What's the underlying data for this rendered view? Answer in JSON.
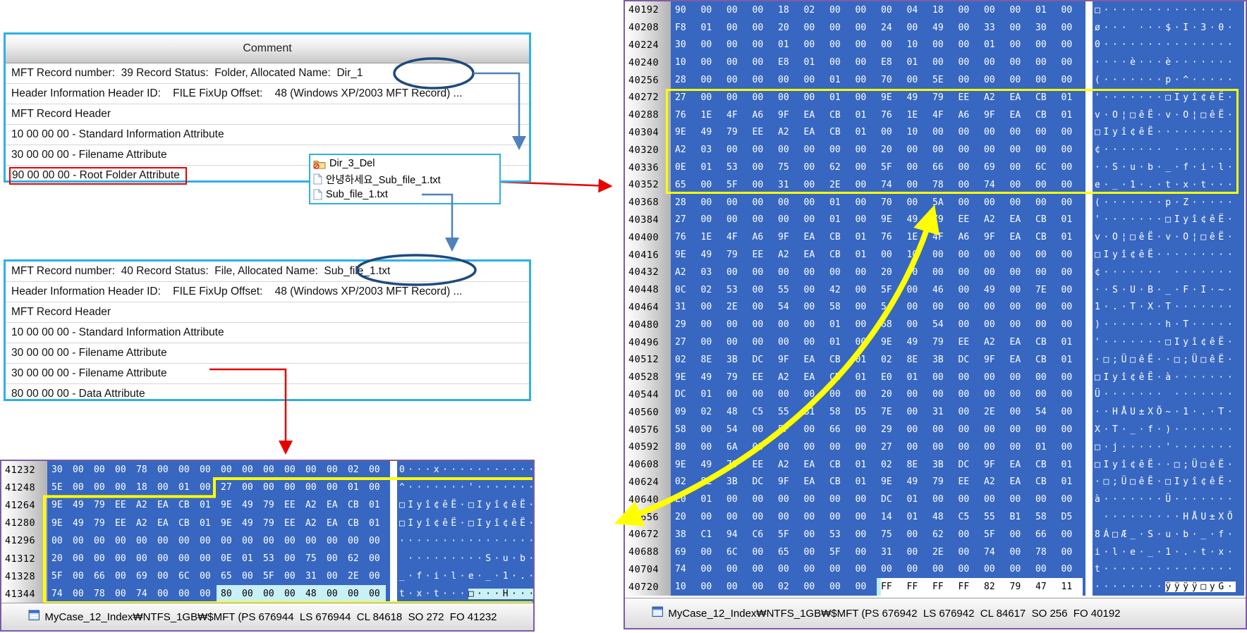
{
  "panel1": {
    "header": "Comment",
    "rows": [
      {
        "label": "MFT Record number:  39 Record Status:  Folder, Allocated Name:  Dir_1"
      },
      {
        "label": "Header Information Header ID:    FILE FixUp Offset:    48 (Windows XP/2003 MFT Record) ..."
      },
      {
        "label": "MFT Record Header"
      },
      {
        "label": "10 00 00 00 - Standard Information Attribute"
      },
      {
        "label": "30 00 00 00 - Filename Attribute"
      },
      {
        "label": "90 00 00 00 - Root Folder Attribute",
        "redbox": true
      }
    ]
  },
  "popup": {
    "items": [
      {
        "icon": "deleted-folder-icon",
        "label": "Dir_3_Del"
      },
      {
        "icon": "file-icon",
        "label": "안녕하세요_Sub_file_1.txt"
      },
      {
        "icon": "file-icon",
        "label": "Sub_file_1.txt"
      }
    ]
  },
  "panel2": {
    "rows": [
      {
        "label": "MFT Record number:  40 Record Status:  File, Allocated Name:  Sub_file_1.txt"
      },
      {
        "label": "Header Information Header ID:    FILE FixUp Offset:    48 (Windows XP/2003 MFT Record) ..."
      },
      {
        "label": "MFT Record Header"
      },
      {
        "label": "10 00 00 00 - Standard Information Attribute"
      },
      {
        "label": "30 00 00 00 - Filename Attribute"
      },
      {
        "label": "30 00 00 00 - Filename Attribute"
      },
      {
        "label": "80 00 00 00 - Data Attribute"
      }
    ]
  },
  "hex_left": {
    "status": "MyCase_12_Index₩NTFS_1GB₩$MFT (PS 676944  LS 676944  CL 84618  SO 272  FO 41232",
    "sel_style": "selc",
    "rows": [
      {
        "o": "41232",
        "b": "30 00 00 00 78 00 00 00 00 00 00 00 00 00 02 00",
        "a": "0···x···········"
      },
      {
        "o": "41248",
        "b": "5E 00 00 00 18 00 01 00 27 00 00 00 00 00 01 00",
        "a": "^·······'·······"
      },
      {
        "o": "41264",
        "b": "9E 49 79 EE A2 EA CB 01 9E 49 79 EE A2 EA CB 01",
        "a": "□Iyî¢êË·□Iyî¢êË·"
      },
      {
        "o": "41280",
        "b": "9E 49 79 EE A2 EA CB 01 9E 49 79 EE A2 EA CB 01",
        "a": "□Iyî¢êË·□Iyî¢êË·"
      },
      {
        "o": "41296",
        "b": "00 00 00 00 00 00 00 00 00 00 00 00 00 00 00 00",
        "a": "················"
      },
      {
        "o": "41312",
        "b": "20 00 00 00 00 00 00 00 0E 01 53 00 75 00 62 00",
        "a": " ·········S·u·b·"
      },
      {
        "o": "41328",
        "b": "5F 00 66 00 69 00 6C 00 65 00 5F 00 31 00 2E 00",
        "a": "_·f·i·l·e·_·1·.·"
      },
      {
        "o": "41344",
        "b": "74 00 78 00 74 00 00 00 80 00 00 00 48 00 00 00",
        "a": "t·x·t···□···H···",
        "sel": 8
      }
    ]
  },
  "hex_right": {
    "status": "MyCase_12_Index₩NTFS_1GB₩$MFT (PS 676942  LS 676942  CL 84617  SO 256  FO 40192",
    "sel_style": "selw",
    "rows": [
      {
        "o": "40192",
        "b": "90 00 00 00 18 02 00 00 00 04 18 00 00 00 01 00",
        "a": "□···············"
      },
      {
        "o": "40208",
        "b": "F8 01 00 00 20 00 00 00 24 00 49 00 33 00 30 00",
        "a": "ø··· ···$·I·3·0·"
      },
      {
        "o": "40224",
        "b": "30 00 00 00 01 00 00 00 00 10 00 00 01 00 00 00",
        "a": "0···············"
      },
      {
        "o": "40240",
        "b": "10 00 00 00 E8 01 00 00 E8 01 00 00 00 00 00 00",
        "a": "····è···è·······"
      },
      {
        "o": "40256",
        "b": "28 00 00 00 00 00 01 00 70 00 5E 00 00 00 00 00",
        "a": "(·······p·^·····"
      },
      {
        "o": "40272",
        "b": "27 00 00 00 00 00 01 00 9E 49 79 EE A2 EA CB 01",
        "a": "'·······□Iyî¢êË·"
      },
      {
        "o": "40288",
        "b": "76 1E 4F A6 9F EA CB 01 76 1E 4F A6 9F EA CB 01",
        "a": "v·O¦□êË·v·O¦□êË·"
      },
      {
        "o": "40304",
        "b": "9E 49 79 EE A2 EA CB 01 00 10 00 00 00 00 00 00",
        "a": "□Iyî¢êË·········"
      },
      {
        "o": "40320",
        "b": "A2 03 00 00 00 00 00 00 20 00 00 00 00 00 00 00",
        "a": "¢······· ·······"
      },
      {
        "o": "40336",
        "b": "0E 01 53 00 75 00 62 00 5F 00 66 00 69 00 6C 00",
        "a": "··S·u·b·_·f·i·l·"
      },
      {
        "o": "40352",
        "b": "65 00 5F 00 31 00 2E 00 74 00 78 00 74 00 00 00",
        "a": "e·_·1·.·t·x·t···"
      },
      {
        "o": "40368",
        "b": "28 00 00 00 00 00 01 00 70 00 5A 00 00 00 00 00",
        "a": "(·······p·Z·····"
      },
      {
        "o": "40384",
        "b": "27 00 00 00 00 00 01 00 9E 49 79 EE A2 EA CB 01",
        "a": "'·······□Iyî¢êË·"
      },
      {
        "o": "40400",
        "b": "76 1E 4F A6 9F EA CB 01 76 1E 4F A6 9F EA CB 01",
        "a": "v·O¦□êË·v·O¦□êË·"
      },
      {
        "o": "40416",
        "b": "9E 49 79 EE A2 EA CB 01 00 10 00 00 00 00 00 00",
        "a": "□Iyî¢êË·········"
      },
      {
        "o": "40432",
        "b": "A2 03 00 00 00 00 00 00 20 00 00 00 00 00 00 00",
        "a": "¢······· ·······"
      },
      {
        "o": "40448",
        "b": "0C 02 53 00 55 00 42 00 5F 00 46 00 49 00 7E 00",
        "a": "··S·U·B·_·F·I·~·"
      },
      {
        "o": "40464",
        "b": "31 00 2E 00 54 00 58 00 54 00 00 00 00 00 00 00",
        "a": "1·.·T·X·T·······"
      },
      {
        "o": "40480",
        "b": "29 00 00 00 00 00 01 00 68 00 54 00 00 00 00 00",
        "a": ")·······h·T·····"
      },
      {
        "o": "40496",
        "b": "27 00 00 00 00 00 01 00 9E 49 79 EE A2 EA CB 01",
        "a": "'·······□Iyî¢êË·"
      },
      {
        "o": "40512",
        "b": "02 8E 3B DC 9F EA CB 01 02 8E 3B DC 9F EA CB 01",
        "a": "·□;Ü□êË··□;Ü□êË·"
      },
      {
        "o": "40528",
        "b": "9E 49 79 EE A2 EA CB 01 E0 01 00 00 00 00 00 00",
        "a": "□Iyî¢êË·à·······"
      },
      {
        "o": "40544",
        "b": "DC 01 00 00 00 00 00 00 20 00 00 00 00 00 00 00",
        "a": "Ü······· ·······"
      },
      {
        "o": "40560",
        "b": "09 02 48 C5 55 B1 58 D5 7E 00 31 00 2E 00 54 00",
        "a": "··HÅU±XÕ~·1·.·T·"
      },
      {
        "o": "40576",
        "b": "58 00 54 00 5F 00 66 00 29 00 00 00 00 00 00 00",
        "a": "X·T·_·f·)·······"
      },
      {
        "o": "40592",
        "b": "80 00 6A 00 00 00 00 00 27 00 00 00 00 00 01 00",
        "a": "□·j·····'·······"
      },
      {
        "o": "40608",
        "b": "9E 49 79 EE A2 EA CB 01 02 8E 3B DC 9F EA CB 01",
        "a": "□Iyî¢êË··□;Ü□êË·"
      },
      {
        "o": "40624",
        "b": "02 8E 3B DC 9F EA CB 01 9E 49 79 EE A2 EA CB 01",
        "a": "·□;Ü□êË·□Iyî¢êË·"
      },
      {
        "o": "40640",
        "b": "E0 01 00 00 00 00 00 00 DC 01 00 00 00 00 00 00",
        "a": "à·······Ü·······"
      },
      {
        "o": "40656",
        "b": "20 00 00 00 00 00 00 00 14 01 48 C5 55 B1 58 D5",
        "a": " ·········HÅU±XÕ"
      },
      {
        "o": "40672",
        "b": "38 C1 94 C6 5F 00 53 00 75 00 62 00 5F 00 66 00",
        "a": "8Á□Æ_·S·u·b·_·f·"
      },
      {
        "o": "40688",
        "b": "69 00 6C 00 65 00 5F 00 31 00 2E 00 74 00 78 00",
        "a": "i·l·e·_·1·.·t·x·"
      },
      {
        "o": "40704",
        "b": "74 00 00 00 00 00 00 00 00 00 00 00 00 00 00 00",
        "a": "t···············"
      },
      {
        "o": "40720",
        "b": "10 00 00 00 02 00 00 00 FF FF FF FF 82 79 47 11",
        "a": "········ÿÿÿÿ□yG·",
        "sel": 8
      }
    ]
  },
  "colors": {
    "hex_blue": "#3767c1",
    "selection_cyan": "#c9f0f7",
    "panel_border_cyan": "#2fb0e6",
    "hex_border_purple": "#7e5ba6",
    "highlight_yellow": "#ffff00",
    "annotation_red": "#e80000",
    "annotation_blue": "#4f81bd",
    "ellipse_navy": "#1f497d"
  }
}
